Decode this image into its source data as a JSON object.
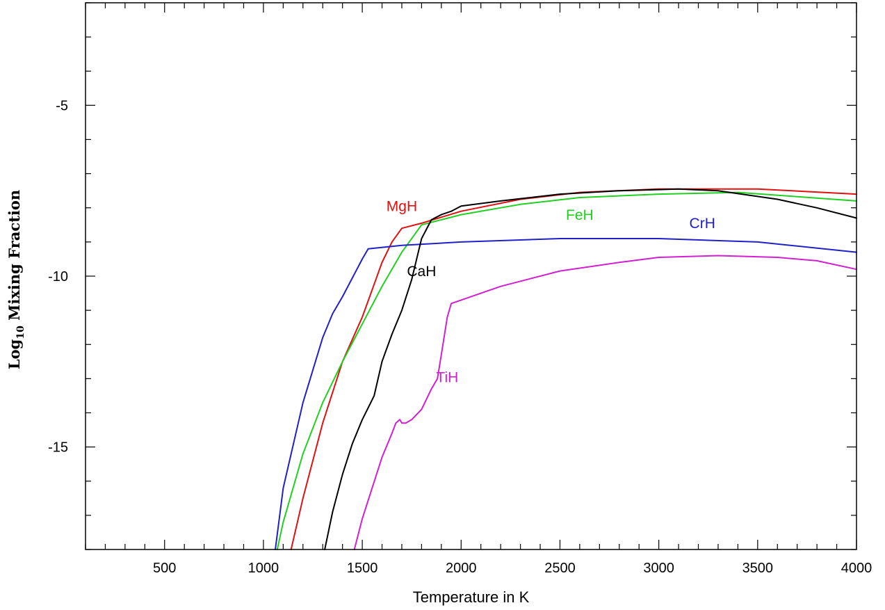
{
  "chart_data": {
    "type": "line",
    "title": "",
    "xlabel": "Temperature in K",
    "ylabel": {
      "prefix": "Log",
      "subscript": "10",
      "suffix": " Mixing Fraction"
    },
    "xlim": [
      100,
      4000
    ],
    "ylim": [
      -18,
      -2
    ],
    "x_ticks": [
      500,
      1000,
      1500,
      2000,
      2500,
      3000,
      3500,
      4000
    ],
    "y_ticks": [
      -5,
      -10,
      -15
    ],
    "x_minor_step": 100,
    "y_minor_step": 1,
    "grid": false,
    "series": [
      {
        "name": "MgH",
        "color": "#e01010",
        "label_at": [
          1700,
          -8.1
        ],
        "x": [
          1140,
          1200,
          1300,
          1400,
          1500,
          1550,
          1600,
          1650,
          1700,
          1800,
          2000,
          2300,
          2600,
          3000,
          3500,
          4000
        ],
        "y": [
          -18,
          -16.5,
          -14.3,
          -12.5,
          -11.2,
          -10.4,
          -9.6,
          -9.0,
          -8.6,
          -8.45,
          -8.1,
          -7.75,
          -7.55,
          -7.45,
          -7.45,
          -7.6
        ]
      },
      {
        "name": "FeH",
        "color": "#20d020",
        "label_at": [
          2600,
          -8.35
        ],
        "x": [
          1070,
          1100,
          1200,
          1300,
          1400,
          1500,
          1600,
          1700,
          1800,
          2000,
          2300,
          2600,
          3000,
          3400,
          4000
        ],
        "y": [
          -18,
          -17.2,
          -15.2,
          -13.7,
          -12.5,
          -11.4,
          -10.3,
          -9.3,
          -8.5,
          -8.2,
          -7.9,
          -7.7,
          -7.6,
          -7.55,
          -7.8
        ]
      },
      {
        "name": "CrH",
        "color": "#2020c8",
        "label_at": [
          3220,
          -8.6
        ],
        "x": [
          1060,
          1100,
          1200,
          1300,
          1350,
          1400,
          1500,
          1530,
          1700,
          2000,
          2500,
          3000,
          3500,
          4000
        ],
        "y": [
          -18,
          -16.2,
          -13.7,
          -11.8,
          -11.1,
          -10.6,
          -9.5,
          -9.2,
          -9.1,
          -9.0,
          -8.9,
          -8.9,
          -9.0,
          -9.3
        ]
      },
      {
        "name": "CaH",
        "color": "#000000",
        "label_at": [
          1800,
          -10.0
        ],
        "x": [
          1310,
          1350,
          1400,
          1450,
          1500,
          1560,
          1600,
          1650,
          1700,
          1750,
          1800,
          1850,
          1900,
          1950,
          2000,
          2200,
          2500,
          2800,
          3100,
          3300,
          3600,
          3800,
          4000
        ],
        "y": [
          -18,
          -16.9,
          -15.8,
          -14.9,
          -14.2,
          -13.5,
          -12.5,
          -11.7,
          -11.0,
          -10.1,
          -8.9,
          -8.35,
          -8.2,
          -8.1,
          -7.95,
          -7.8,
          -7.6,
          -7.5,
          -7.45,
          -7.5,
          -7.75,
          -8.0,
          -8.3
        ]
      },
      {
        "name": "TiH",
        "color": "#d020d0",
        "label_at": [
          1930,
          -13.1
        ],
        "x": [
          1460,
          1500,
          1550,
          1600,
          1650,
          1670,
          1690,
          1700,
          1720,
          1750,
          1800,
          1850,
          1880,
          1900,
          1930,
          1950,
          2000,
          2200,
          2500,
          2800,
          3000,
          3300,
          3600,
          3800,
          4000
        ],
        "y": [
          -18,
          -17.1,
          -16.2,
          -15.3,
          -14.6,
          -14.3,
          -14.2,
          -14.3,
          -14.3,
          -14.2,
          -13.9,
          -13.3,
          -13.0,
          -12.3,
          -11.2,
          -10.8,
          -10.7,
          -10.3,
          -9.85,
          -9.6,
          -9.45,
          -9.4,
          -9.45,
          -9.55,
          -9.8
        ]
      }
    ]
  }
}
